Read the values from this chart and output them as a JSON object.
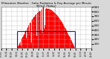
{
  "title_line1": "Milwaukee Weather - Solar Radiation & Day Average per Minute W/m2 (Today)",
  "bg_color": "#d8d8d8",
  "plot_bg_color": "#ffffff",
  "bar_color": "#ff0000",
  "line_color": "#0000cc",
  "grid_color": "#bbbbbb",
  "dashed_line_color": "#888888",
  "ylim": [
    0,
    900
  ],
  "xlim": [
    0,
    288
  ],
  "avg_value": 370,
  "sunrise": 52,
  "sunset": 236,
  "peak_y": 870,
  "yticks": [
    100,
    200,
    300,
    400,
    500,
    600,
    700,
    800,
    900
  ],
  "num_points": 288
}
